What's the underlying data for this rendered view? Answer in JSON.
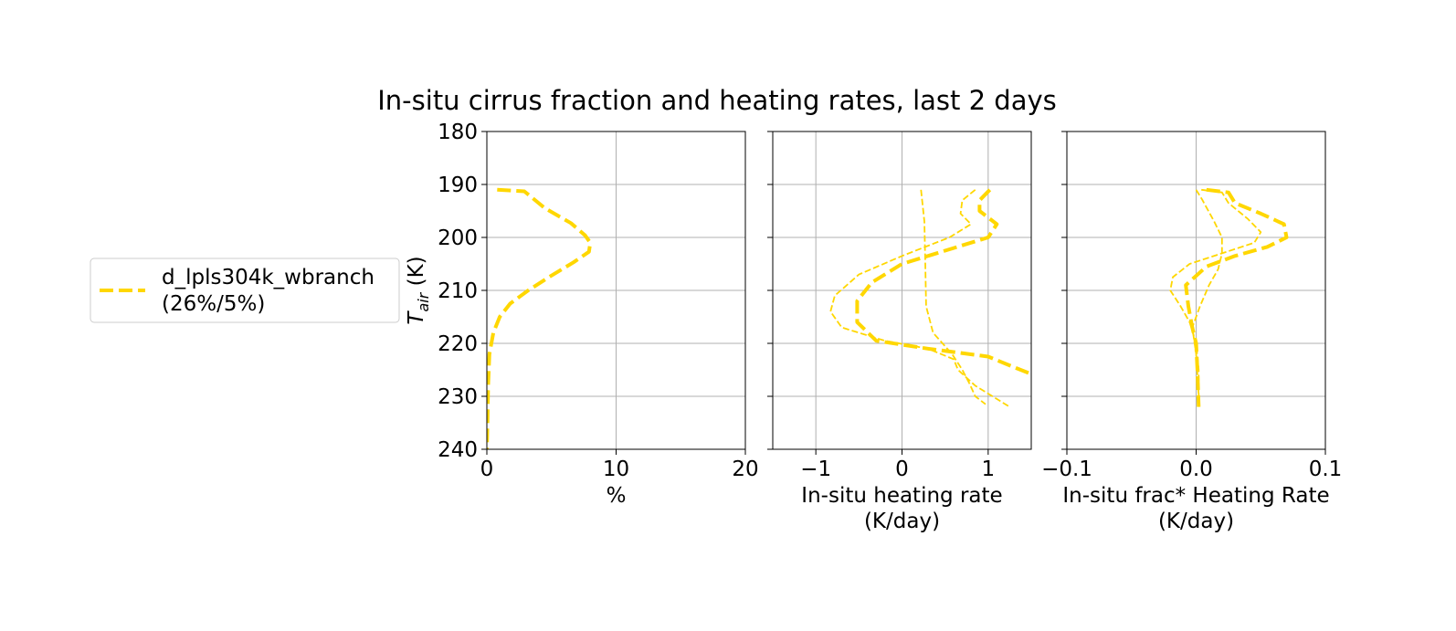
{
  "title": "In-situ cirrus fraction and heating rates, last 2 days",
  "legend": {
    "placement": "left",
    "entries": [
      {
        "line1": "d_lpls304k_wbranch",
        "line2": "(26%/5%)",
        "color": "#ffd700",
        "style": "dashed"
      }
    ]
  },
  "chart_data": [
    {
      "type": "line",
      "ylabel": "T",
      "ylabel_sub": "air",
      "ylabel_unit": " (K)",
      "xlabel": [
        "%"
      ],
      "xlim": [
        0,
        20
      ],
      "ylim": [
        240,
        180
      ],
      "xticks": [
        0,
        10,
        20
      ],
      "xtick_labels": [
        "0",
        "10",
        "20"
      ],
      "yticks": [
        180,
        190,
        200,
        210,
        220,
        230,
        240
      ],
      "ytick_labels": [
        "180",
        "190",
        "200",
        "210",
        "220",
        "230",
        "240"
      ],
      "grid": true,
      "series": [
        {
          "color": "#ffd700",
          "style": "thick-dashed",
          "points": [
            [
              0.8,
              191
            ],
            [
              2.9,
              191.3
            ],
            [
              4.5,
              194.5
            ],
            [
              6.5,
              197.3
            ],
            [
              7.6,
              199.6
            ],
            [
              8.0,
              201
            ],
            [
              7.9,
              202.7
            ],
            [
              6.7,
              204.7
            ],
            [
              4.8,
              207.5
            ],
            [
              3.2,
              210
            ],
            [
              1.8,
              212.5
            ],
            [
              1.0,
              215
            ],
            [
              0.5,
              218
            ],
            [
              0.2,
              222
            ],
            [
              0.1,
              228
            ],
            [
              0.05,
              235
            ],
            [
              0.0,
              240
            ]
          ]
        }
      ]
    },
    {
      "type": "line",
      "xlabel": [
        "In-situ heating rate",
        "(K/day)"
      ],
      "xlim": [
        -1.5,
        1.5
      ],
      "ylim": [
        240,
        180
      ],
      "xticks": [
        -1,
        0,
        1
      ],
      "xtick_labels": [
        "−1",
        "0",
        "1"
      ],
      "yticks": [
        180,
        190,
        200,
        210,
        220,
        230,
        240
      ],
      "grid": true,
      "series": [
        {
          "color": "#ffd700",
          "style": "thick-dashed",
          "points": [
            [
              1.02,
              191
            ],
            [
              0.9,
              193
            ],
            [
              0.9,
              195
            ],
            [
              1.1,
              197.5
            ],
            [
              1.0,
              200
            ],
            [
              0.5,
              202.5
            ],
            [
              0.0,
              205
            ],
            [
              -0.35,
              208.5
            ],
            [
              -0.52,
              212
            ],
            [
              -0.52,
              216
            ],
            [
              -0.3,
              219.5
            ],
            [
              0.3,
              221
            ],
            [
              1.0,
              222.5
            ],
            [
              1.3,
              224.5
            ],
            [
              1.5,
              225.8
            ]
          ]
        },
        {
          "color": "#ffd700",
          "style": "thin-dashed",
          "points": [
            [
              0.22,
              191
            ],
            [
              0.26,
              197
            ],
            [
              0.27,
              205
            ],
            [
              0.28,
              213
            ],
            [
              0.36,
              218
            ],
            [
              0.58,
              222
            ],
            [
              0.7,
              225
            ],
            [
              0.78,
              227.5
            ],
            [
              0.85,
              230
            ],
            [
              0.97,
              231.5
            ]
          ]
        },
        {
          "color": "#ffd700",
          "style": "thin-dashed",
          "points": [
            [
              0.85,
              191
            ],
            [
              0.7,
              193
            ],
            [
              0.68,
              195.5
            ],
            [
              0.8,
              197.5
            ],
            [
              0.55,
              200
            ],
            [
              0.0,
              203.5
            ],
            [
              -0.5,
              207
            ],
            [
              -0.78,
              211
            ],
            [
              -0.83,
              214
            ],
            [
              -0.7,
              217
            ],
            [
              -0.2,
              219.5
            ],
            [
              0.3,
              221
            ],
            [
              0.6,
              223
            ],
            [
              0.65,
              225
            ],
            [
              0.85,
              228
            ],
            [
              1.1,
              230.5
            ],
            [
              1.25,
              232
            ]
          ]
        }
      ]
    },
    {
      "type": "line",
      "xlabel": [
        "In-situ frac* Heating Rate",
        "(K/day)"
      ],
      "xlim": [
        -0.1,
        0.1
      ],
      "ylim": [
        240,
        180
      ],
      "xticks": [
        -0.1,
        0.0,
        0.1
      ],
      "xtick_labels": [
        "−0.1",
        "0.0",
        "0.1"
      ],
      "yticks": [
        180,
        190,
        200,
        210,
        220,
        230,
        240
      ],
      "grid": true,
      "series": [
        {
          "color": "#ffd700",
          "style": "thick-dashed",
          "points": [
            [
              0.008,
              191
            ],
            [
              0.025,
              191.5
            ],
            [
              0.03,
              193.5
            ],
            [
              0.05,
              195.5
            ],
            [
              0.068,
              197.5
            ],
            [
              0.07,
              200
            ],
            [
              0.055,
              201.8
            ],
            [
              0.03,
              203.5
            ],
            [
              0.008,
              205.5
            ],
            [
              -0.008,
              209
            ],
            [
              -0.006,
              213
            ],
            [
              -0.003,
              217
            ],
            [
              0.0,
              220
            ],
            [
              0.001,
              225
            ],
            [
              0.002,
              232
            ]
          ]
        },
        {
          "color": "#ffd700",
          "style": "thin-dashed",
          "points": [
            [
              0.004,
              191
            ],
            [
              0.02,
              191.5
            ],
            [
              0.025,
              193.5
            ],
            [
              0.04,
              196.5
            ],
            [
              0.05,
              199
            ],
            [
              0.045,
              201
            ],
            [
              0.02,
              203
            ],
            [
              -0.005,
              205
            ],
            [
              -0.018,
              207.5
            ],
            [
              -0.02,
              210
            ],
            [
              -0.012,
              213
            ],
            [
              -0.005,
              216
            ],
            [
              0.0,
              220
            ],
            [
              0.002,
              225
            ],
            [
              0.002,
              231
            ]
          ]
        },
        {
          "color": "#ffd700",
          "style": "thin-dashed",
          "points": [
            [
              0.0,
              191
            ],
            [
              0.005,
              193
            ],
            [
              0.014,
              197
            ],
            [
              0.02,
              200
            ],
            [
              0.02,
              203
            ],
            [
              0.017,
              206
            ],
            [
              0.01,
              209
            ],
            [
              0.003,
              213
            ],
            [
              -0.003,
              217
            ],
            [
              0.0,
              222
            ],
            [
              0.002,
              230
            ]
          ]
        }
      ]
    }
  ]
}
